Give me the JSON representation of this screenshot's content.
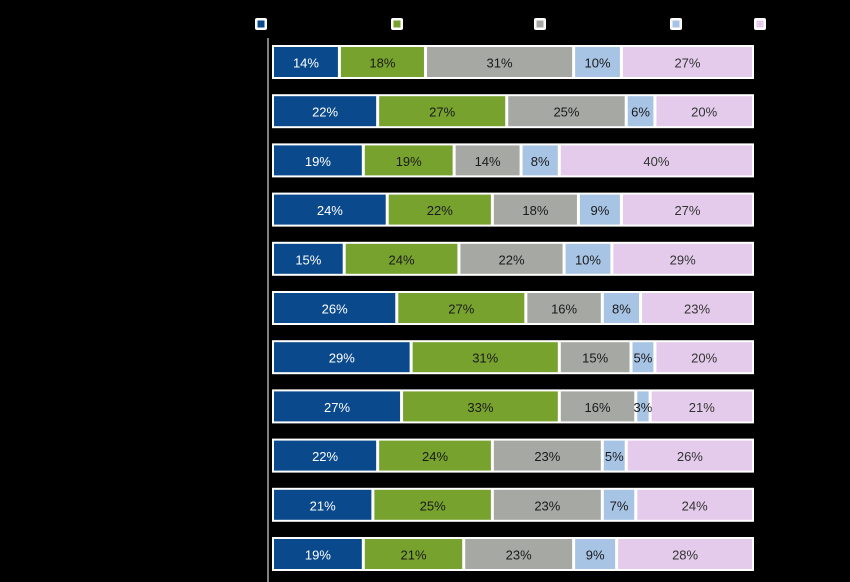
{
  "chart_data": {
    "type": "bar",
    "orientation": "horizontal",
    "stacked": "percent",
    "title": "",
    "xlabel": "",
    "ylabel": "",
    "xlim": [
      0,
      100
    ],
    "grid": false,
    "legend": {
      "placement": "top",
      "entries": [
        "",
        "",
        "",
        "",
        ""
      ]
    },
    "categories": [
      "",
      "",
      "",
      "",
      "",
      "",
      "",
      "",
      "",
      "",
      ""
    ],
    "series": [
      {
        "color": "#0a4a8c",
        "label_color": "#ffffff",
        "values": [
          14,
          22,
          19,
          24,
          15,
          26,
          29,
          27,
          22,
          21,
          19
        ]
      },
      {
        "color": "#77a22d",
        "label_color": "#1a1a1a",
        "values": [
          18,
          27,
          19,
          22,
          24,
          27,
          31,
          33,
          24,
          25,
          21
        ]
      },
      {
        "color": "#a6a8a4",
        "label_color": "#1a1a1a",
        "values": [
          31,
          25,
          14,
          18,
          22,
          16,
          15,
          16,
          23,
          23,
          23
        ]
      },
      {
        "color": "#a8c4e4",
        "label_color": "#1a1a1a",
        "values": [
          10,
          6,
          8,
          9,
          10,
          8,
          5,
          3,
          5,
          7,
          9
        ]
      },
      {
        "color": "#e4cbeb",
        "label_color": "#333333",
        "values": [
          27,
          20,
          40,
          27,
          29,
          23,
          20,
          21,
          26,
          24,
          28
        ]
      }
    ],
    "value_suffix": "%"
  }
}
